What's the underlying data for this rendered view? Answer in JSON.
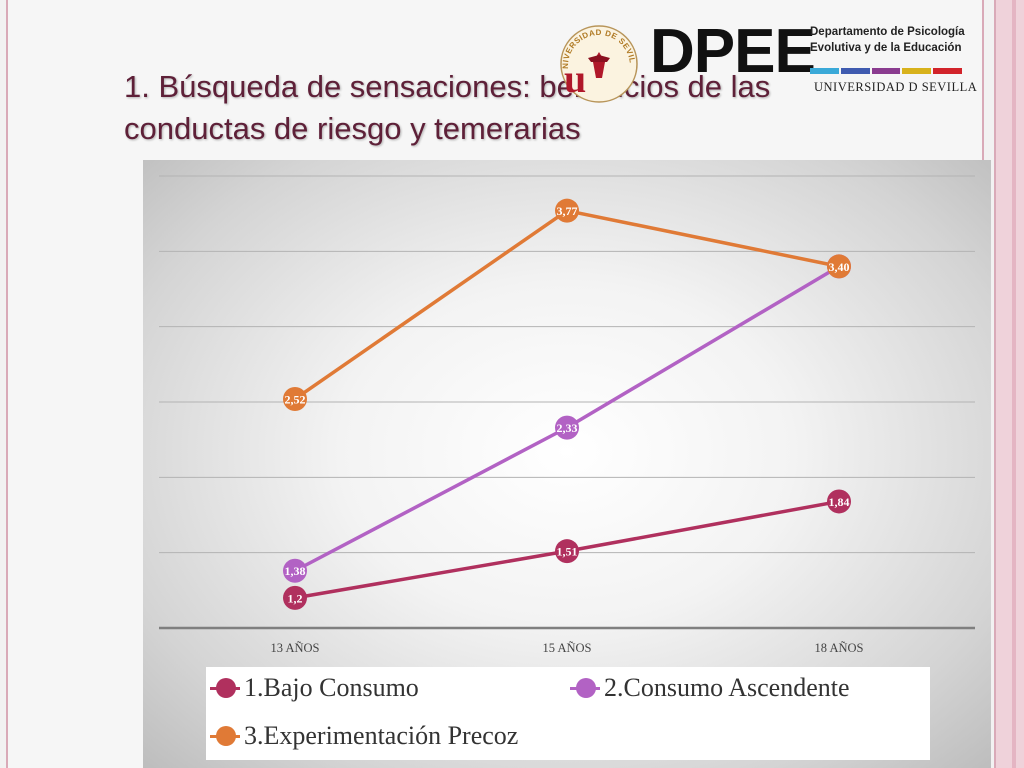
{
  "slide": {
    "title": "1. Búsqueda de sensaciones: beneficios de las conductas de riesgo y temerarias"
  },
  "logo": {
    "acronym": "DPEE",
    "department_line1": "Departamento de Psicología",
    "department_line2": "Evolutiva y de la Educación",
    "university": "UNIVERSIDAD D SEVILLA",
    "seal_text": "UNIVERSIDAD DE SEVILLA",
    "bar_colors": [
      "#3aa9d8",
      "#3f5bb0",
      "#8a3b8f",
      "#d8b21c",
      "#d2232a"
    ]
  },
  "colors": {
    "title": "#5e2038",
    "gridline": "#b3b3b3",
    "axis": "#7f7f7f"
  },
  "chart_data": {
    "type": "line",
    "categories": [
      "13 AÑOS",
      "15 AÑOS",
      "18 AÑOS"
    ],
    "ylim": [
      1,
      4
    ],
    "grid": true,
    "legend_position": "bottom",
    "series": [
      {
        "name": "1.Bajo Consumo",
        "color": "#b0305e",
        "values": [
          1.2,
          1.51,
          1.84
        ],
        "labels": [
          "1,2",
          "1,51",
          "1,84"
        ]
      },
      {
        "name": "2.Consumo Ascendente",
        "color": "#b262c4",
        "values": [
          1.38,
          2.33,
          3.4
        ],
        "labels": [
          "1,38",
          "2,33",
          "3,40"
        ]
      },
      {
        "name": "3.Experimentación Precoz",
        "color": "#e07a36",
        "values": [
          2.52,
          3.77,
          3.4
        ],
        "labels": [
          "2,52",
          "3,77",
          "3,40"
        ]
      }
    ]
  }
}
